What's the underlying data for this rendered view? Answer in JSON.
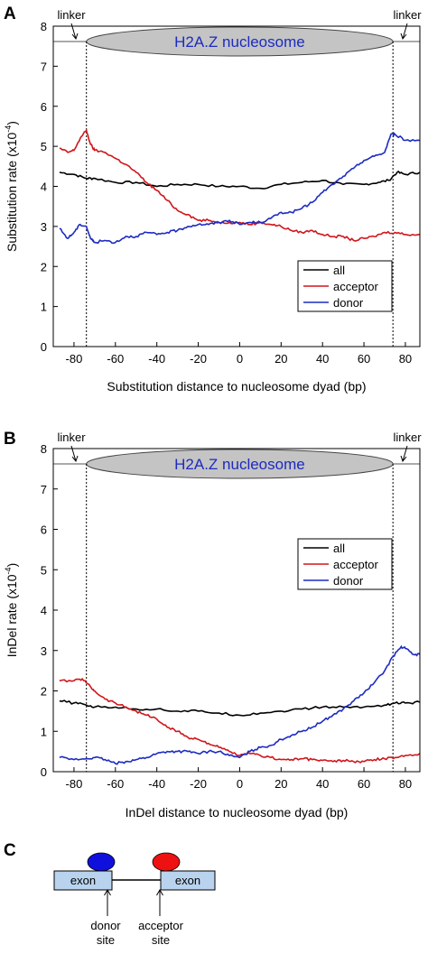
{
  "colors": {
    "all": "#000000",
    "acceptor": "#d0161b",
    "donor": "#1c2bc1",
    "nucleosome": "#c4c4c4",
    "nucleosome_text": "#1c2bc1",
    "exon_fill": "#b9d3ee",
    "donor_dot": "#1010dd",
    "acceptor_dot": "#ee1111"
  },
  "chart_data": [
    {
      "panel": "A",
      "type": "line",
      "xlabel": "Substitution distance to nucleosome dyad (bp)",
      "ylabel": "Substitution rate (x10",
      "ylabel_sup": "-4",
      "ylabel_tail": ")",
      "xlim": [
        -90,
        87
      ],
      "ylim": [
        0,
        8
      ],
      "xticks": [
        -80,
        -60,
        -40,
        -20,
        0,
        20,
        40,
        60,
        80
      ],
      "yticks": [
        0,
        1,
        2,
        3,
        4,
        5,
        6,
        7,
        8
      ],
      "nucleosome_label": "H2A.Z nucleosome",
      "linker_label": "linker",
      "boundaries": [
        -74,
        74
      ],
      "legend": [
        "all",
        "acceptor",
        "donor"
      ],
      "series": [
        {
          "name": "all",
          "x": [
            -87,
            -80,
            -74,
            -70,
            -60,
            -50,
            -40,
            -30,
            -20,
            -10,
            0,
            10,
            20,
            30,
            40,
            50,
            60,
            67,
            72,
            76,
            80,
            87
          ],
          "y": [
            4.35,
            4.3,
            4.2,
            4.2,
            4.1,
            4.1,
            4.0,
            4.05,
            4.05,
            4.0,
            4.0,
            3.95,
            4.05,
            4.1,
            4.15,
            4.05,
            4.05,
            4.1,
            4.15,
            4.35,
            4.3,
            4.35
          ]
        },
        {
          "name": "acceptor",
          "x": [
            -87,
            -83,
            -80,
            -77,
            -74,
            -72,
            -70,
            -65,
            -60,
            -55,
            -50,
            -45,
            -40,
            -35,
            -30,
            -25,
            -20,
            -15,
            -10,
            -5,
            0,
            5,
            10,
            15,
            20,
            25,
            30,
            35,
            40,
            45,
            50,
            55,
            60,
            65,
            70,
            75,
            80,
            87
          ],
          "y": [
            4.95,
            4.85,
            4.9,
            5.2,
            5.4,
            5.05,
            4.9,
            4.85,
            4.7,
            4.55,
            4.35,
            4.1,
            3.9,
            3.65,
            3.4,
            3.3,
            3.15,
            3.15,
            3.1,
            3.1,
            3.1,
            3.05,
            3.1,
            3.05,
            3.0,
            2.9,
            2.85,
            2.9,
            2.8,
            2.75,
            2.75,
            2.65,
            2.7,
            2.75,
            2.85,
            2.85,
            2.8,
            2.8
          ]
        },
        {
          "name": "donor",
          "x": [
            -87,
            -83,
            -80,
            -77,
            -74,
            -72,
            -70,
            -65,
            -60,
            -55,
            -50,
            -45,
            -40,
            -35,
            -30,
            -25,
            -20,
            -15,
            -10,
            -5,
            0,
            5,
            10,
            15,
            20,
            25,
            30,
            35,
            40,
            45,
            50,
            55,
            60,
            65,
            70,
            73,
            75,
            80,
            87
          ],
          "y": [
            2.95,
            2.7,
            2.85,
            3.05,
            3.0,
            2.7,
            2.6,
            2.65,
            2.6,
            2.75,
            2.75,
            2.85,
            2.8,
            2.85,
            2.9,
            3.0,
            3.05,
            3.05,
            3.1,
            3.15,
            3.05,
            3.1,
            3.1,
            3.2,
            3.35,
            3.35,
            3.45,
            3.6,
            3.85,
            4.05,
            4.25,
            4.45,
            4.65,
            4.75,
            4.85,
            5.3,
            5.3,
            5.15,
            5.15
          ]
        }
      ]
    },
    {
      "panel": "B",
      "type": "line",
      "xlabel": "InDel distance to nucleosome dyad (bp)",
      "ylabel": "InDel rate (x10",
      "ylabel_sup": "-4",
      "ylabel_tail": ")",
      "xlim": [
        -90,
        87
      ],
      "ylim": [
        0,
        8
      ],
      "xticks": [
        -80,
        -60,
        -40,
        -20,
        0,
        20,
        40,
        60,
        80
      ],
      "yticks": [
        0,
        1,
        2,
        3,
        4,
        5,
        6,
        7,
        8
      ],
      "nucleosome_label": "H2A.Z nucleosome",
      "linker_label": "linker",
      "boundaries": [
        -74,
        74
      ],
      "legend": [
        "all",
        "acceptor",
        "donor"
      ],
      "series": [
        {
          "name": "all",
          "x": [
            -87,
            -80,
            -74,
            -70,
            -60,
            -50,
            -40,
            -30,
            -20,
            -10,
            0,
            10,
            20,
            30,
            40,
            50,
            60,
            70,
            75,
            80,
            87
          ],
          "y": [
            1.75,
            1.7,
            1.65,
            1.6,
            1.6,
            1.55,
            1.55,
            1.5,
            1.5,
            1.45,
            1.4,
            1.45,
            1.5,
            1.55,
            1.6,
            1.6,
            1.6,
            1.65,
            1.7,
            1.7,
            1.72
          ]
        },
        {
          "name": "acceptor",
          "x": [
            -87,
            -80,
            -76,
            -72,
            -70,
            -65,
            -60,
            -55,
            -50,
            -45,
            -40,
            -35,
            -30,
            -25,
            -20,
            -15,
            -10,
            -5,
            0,
            5,
            10,
            15,
            20,
            25,
            30,
            35,
            40,
            45,
            50,
            55,
            60,
            65,
            70,
            75,
            80,
            87
          ],
          "y": [
            2.25,
            2.25,
            2.3,
            2.1,
            2.0,
            1.8,
            1.7,
            1.6,
            1.5,
            1.4,
            1.3,
            1.1,
            1.0,
            0.85,
            0.8,
            0.7,
            0.6,
            0.5,
            0.4,
            0.45,
            0.4,
            0.35,
            0.3,
            0.3,
            0.32,
            0.3,
            0.28,
            0.25,
            0.28,
            0.25,
            0.25,
            0.3,
            0.32,
            0.35,
            0.4,
            0.45
          ]
        },
        {
          "name": "donor",
          "x": [
            -87,
            -80,
            -74,
            -70,
            -65,
            -60,
            -55,
            -50,
            -45,
            -40,
            -35,
            -30,
            -25,
            -20,
            -15,
            -10,
            -5,
            0,
            5,
            10,
            15,
            20,
            25,
            30,
            35,
            40,
            45,
            50,
            55,
            60,
            65,
            70,
            74,
            78,
            80,
            84,
            87
          ],
          "y": [
            0.35,
            0.3,
            0.32,
            0.35,
            0.3,
            0.2,
            0.25,
            0.3,
            0.35,
            0.45,
            0.5,
            0.5,
            0.5,
            0.45,
            0.5,
            0.5,
            0.4,
            0.35,
            0.5,
            0.6,
            0.65,
            0.8,
            0.9,
            1.0,
            1.1,
            1.25,
            1.4,
            1.55,
            1.75,
            1.95,
            2.2,
            2.5,
            2.85,
            3.1,
            3.05,
            2.9,
            2.9
          ]
        }
      ]
    }
  ],
  "panel_labels": {
    "a": "A",
    "b": "B",
    "c": "C"
  },
  "diagram": {
    "exon_left": "exon",
    "exon_right": "exon",
    "donor_line1": "donor",
    "donor_line2": "site",
    "acceptor_line1": "acceptor",
    "acceptor_line2": "site"
  }
}
